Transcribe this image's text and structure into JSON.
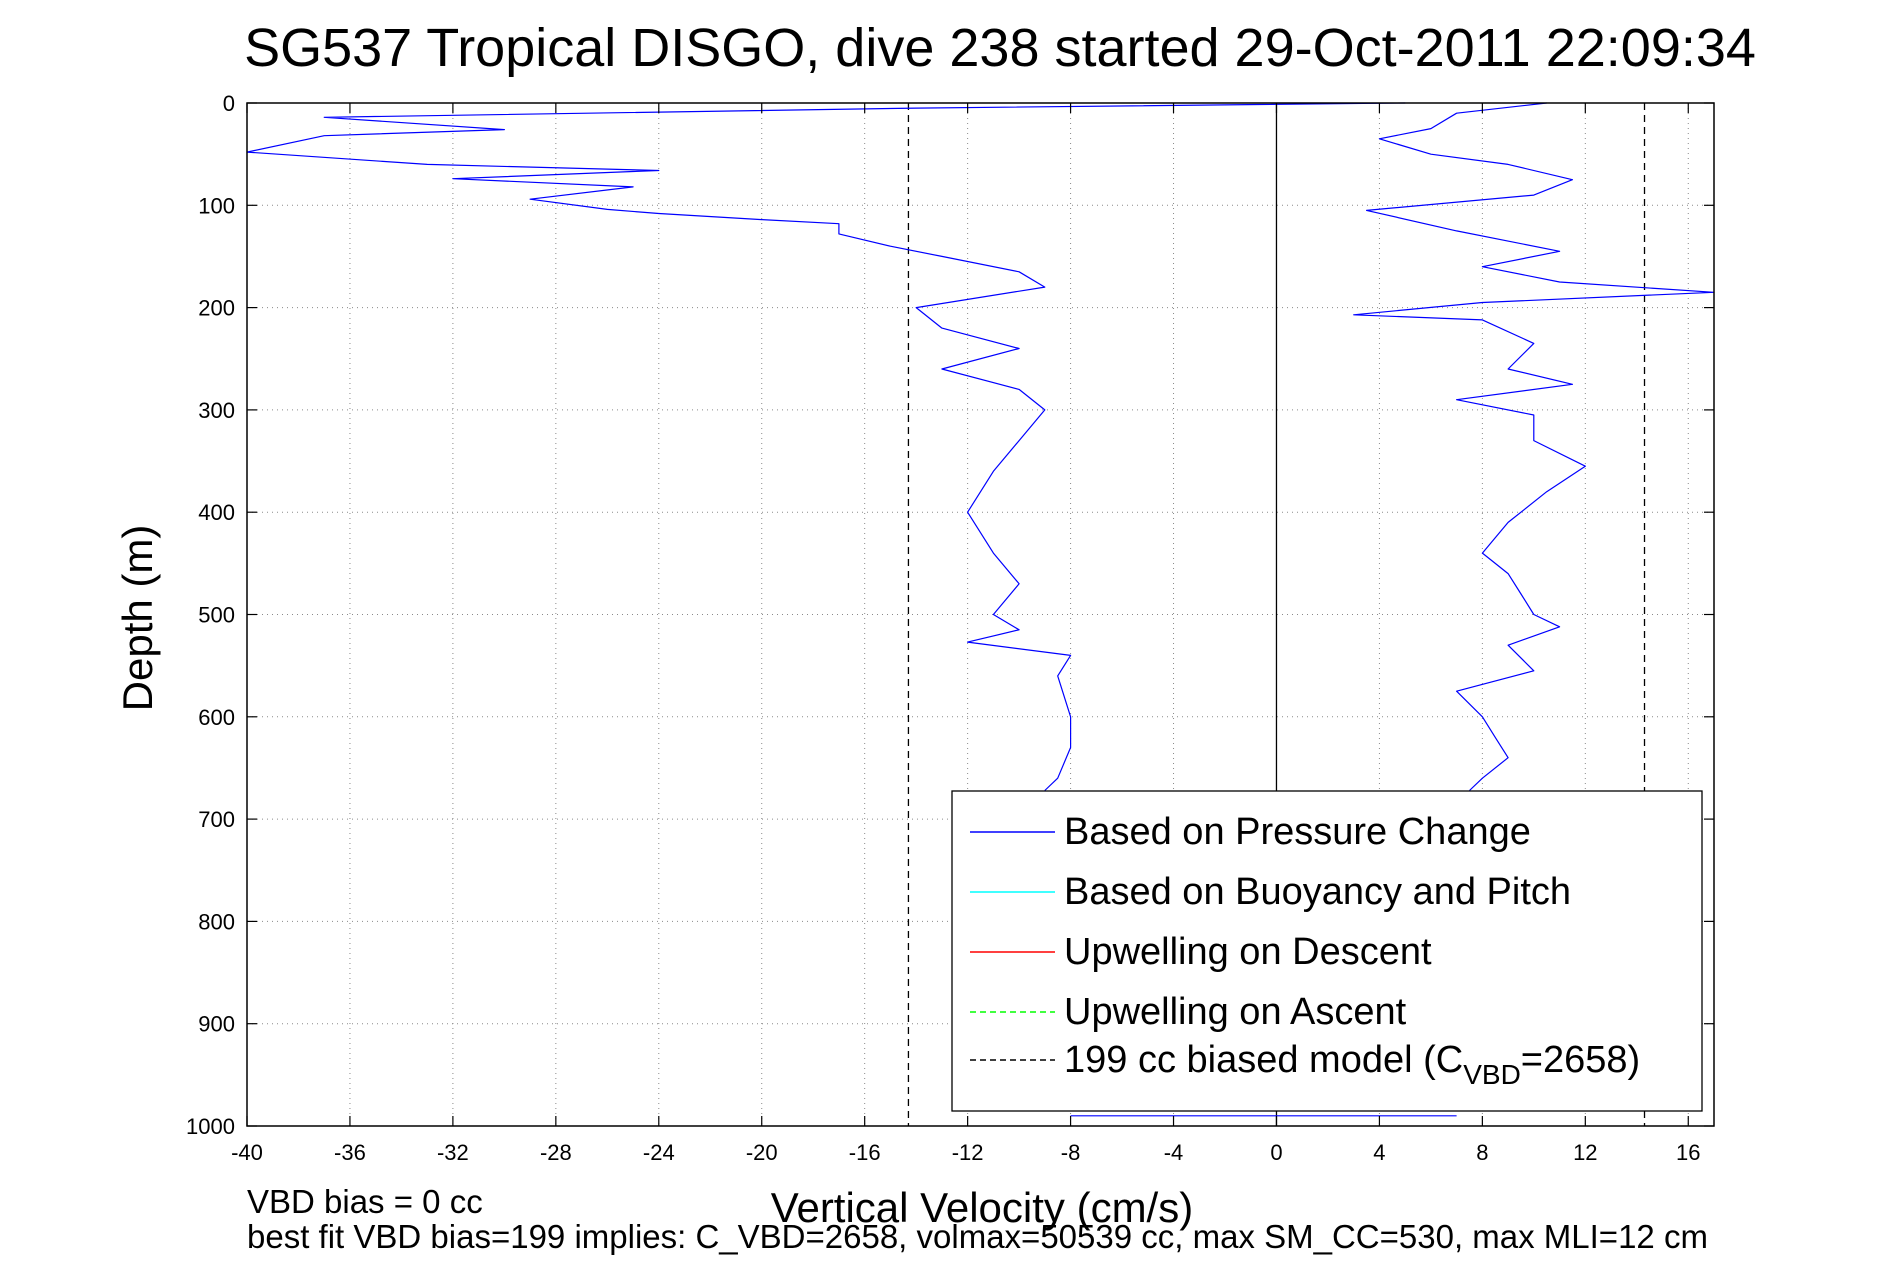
{
  "chart_data": {
    "type": "line",
    "title": "SG537 Tropical DISGO, dive 238 started 29-Oct-2011 22:09:34",
    "xlabel": "Vertical Velocity (cm/s)",
    "ylabel": "Depth (m)",
    "xlim": [
      -40,
      17
    ],
    "ylim": [
      0,
      1000
    ],
    "y_reversed": true,
    "grid": true,
    "xticks": [
      -40,
      -36,
      -32,
      -28,
      -24,
      -20,
      -16,
      -12,
      -8,
      -4,
      0,
      4,
      8,
      12,
      16
    ],
    "yticks": [
      0,
      100,
      200,
      300,
      400,
      500,
      600,
      700,
      800,
      900,
      1000
    ],
    "legend_location": "lower-right",
    "legend": [
      {
        "label": "Based on Pressure Change",
        "color": "#0000ff",
        "style": "solid"
      },
      {
        "label": "Based on Buoyancy and Pitch",
        "color": "#00ffff",
        "style": "solid"
      },
      {
        "label": "Upwelling on Descent",
        "color": "#ff0000",
        "style": "solid"
      },
      {
        "label": "Upwelling on Ascent",
        "color": "#00ff00",
        "style": "dashed"
      },
      {
        "label_main": "199 cc biased model (C",
        "label_sub": "VBD",
        "label_tail": "=2658)",
        "color": "#000000",
        "style": "dashed"
      }
    ],
    "reference_lines": [
      {
        "orientation": "vertical",
        "x": -14.3,
        "style": "dashed",
        "color": "#000000"
      },
      {
        "orientation": "vertical",
        "x": 14.3,
        "style": "dashed",
        "color": "#000000"
      },
      {
        "orientation": "vertical",
        "x": 0,
        "style": "solid",
        "color": "#000000"
      }
    ],
    "series": [
      {
        "name": "Based on Pressure Change (descent)",
        "color": "#0000ff",
        "points": [
          [
            5,
            0
          ],
          [
            -14,
            5
          ],
          [
            -37,
            14
          ],
          [
            -30,
            26
          ],
          [
            -37,
            32
          ],
          [
            -40,
            48
          ],
          [
            -33,
            60
          ],
          [
            -24,
            66
          ],
          [
            -32,
            74
          ],
          [
            -25,
            82
          ],
          [
            -29,
            94
          ],
          [
            -26,
            104
          ],
          [
            -24,
            108
          ],
          [
            -20,
            114
          ],
          [
            -17,
            118
          ],
          [
            -17,
            128
          ],
          [
            -15,
            140
          ],
          [
            -13,
            150
          ],
          [
            -10,
            165
          ],
          [
            -9,
            180
          ],
          [
            -14,
            200
          ],
          [
            -13,
            220
          ],
          [
            -10,
            240
          ],
          [
            -13,
            260
          ],
          [
            -10,
            280
          ],
          [
            -9,
            300
          ],
          [
            -10,
            330
          ],
          [
            -11,
            360
          ],
          [
            -12,
            400
          ],
          [
            -11,
            440
          ],
          [
            -10,
            470
          ],
          [
            -11,
            500
          ],
          [
            -10,
            515
          ],
          [
            -12,
            527
          ],
          [
            -8,
            540
          ],
          [
            -8.5,
            560
          ],
          [
            -8,
            600
          ],
          [
            -8,
            630
          ],
          [
            -8.5,
            660
          ],
          [
            -9,
            672
          ]
        ]
      },
      {
        "name": "Based on Pressure Change (ascent)",
        "color": "#0000ff",
        "points": [
          [
            10.5,
            0
          ],
          [
            7,
            10
          ],
          [
            6,
            25
          ],
          [
            4,
            35
          ],
          [
            6,
            50
          ],
          [
            9,
            60
          ],
          [
            11.5,
            75
          ],
          [
            10,
            90
          ],
          [
            3.5,
            105
          ],
          [
            7,
            125
          ],
          [
            11,
            145
          ],
          [
            8,
            160
          ],
          [
            11,
            175
          ],
          [
            17,
            185
          ],
          [
            8,
            195
          ],
          [
            3,
            207
          ],
          [
            8,
            212
          ],
          [
            10,
            235
          ],
          [
            9,
            260
          ],
          [
            11.5,
            275
          ],
          [
            7,
            290
          ],
          [
            10,
            305
          ],
          [
            10,
            330
          ],
          [
            12,
            355
          ],
          [
            10.5,
            380
          ],
          [
            9,
            410
          ],
          [
            8,
            440
          ],
          [
            9,
            460
          ],
          [
            9.5,
            480
          ],
          [
            10,
            500
          ],
          [
            11,
            512
          ],
          [
            9,
            530
          ],
          [
            10,
            555
          ],
          [
            7,
            575
          ],
          [
            8,
            600
          ],
          [
            8.5,
            620
          ],
          [
            9,
            640
          ],
          [
            8,
            660
          ],
          [
            7.5,
            672
          ]
        ]
      },
      {
        "name": "Based on Pressure Change (bottom)",
        "color": "#0000ff",
        "points": [
          [
            -8,
            990
          ],
          [
            7,
            990
          ]
        ]
      }
    ]
  },
  "footer": {
    "line1": "VBD bias = 0 cc",
    "line2": "best fit VBD bias=199 implies: C_VBD=2658, volmax=50539 cc, max SM_CC=530, max MLI=12 cm"
  }
}
